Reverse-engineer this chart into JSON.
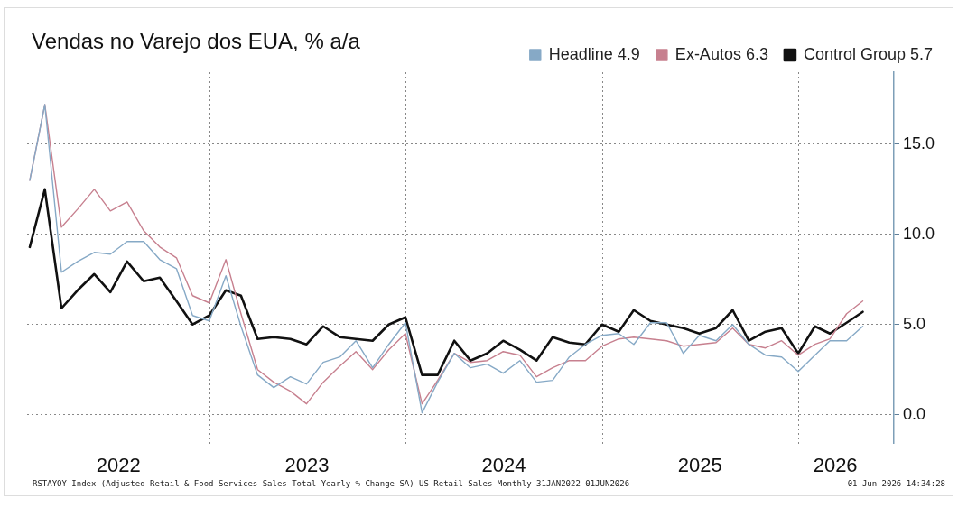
{
  "chart_data": {
    "type": "line",
    "title": "Vendas no Varejo dos EUA, % a/a",
    "x": [
      "2022-01-31",
      "2022-02-28",
      "2022-03-31",
      "2022-04-30",
      "2022-05-31",
      "2022-06-30",
      "2022-07-31",
      "2022-08-31",
      "2022-09-30",
      "2022-10-31",
      "2022-11-30",
      "2022-12-31",
      "2023-01-31",
      "2023-02-28",
      "2023-03-31",
      "2023-04-30",
      "2023-05-31",
      "2023-06-30",
      "2023-07-31",
      "2023-08-31",
      "2023-09-30",
      "2023-10-31",
      "2023-11-30",
      "2023-12-31",
      "2024-01-31",
      "2024-02-29",
      "2024-03-31",
      "2024-04-30",
      "2024-05-31",
      "2024-06-30",
      "2024-07-31",
      "2024-08-31",
      "2024-09-30",
      "2024-10-31",
      "2024-11-30",
      "2024-12-31",
      "2025-01-31",
      "2025-02-28",
      "2025-03-31",
      "2025-04-30",
      "2025-05-31",
      "2025-06-30",
      "2025-07-31",
      "2025-08-31",
      "2025-09-30",
      "2025-10-31",
      "2025-11-30",
      "2025-12-31",
      "2026-01-31",
      "2026-02-28",
      "2026-03-31",
      "2026-04-30"
    ],
    "series": [
      {
        "name": "Headline 4.9",
        "color": "#86a9c6",
        "values": [
          13.0,
          17.2,
          7.9,
          8.5,
          9.0,
          8.9,
          9.6,
          9.6,
          8.6,
          8.1,
          5.5,
          5.2,
          7.7,
          4.9,
          2.2,
          1.5,
          2.1,
          1.7,
          2.9,
          3.2,
          4.1,
          2.6,
          3.9,
          5.1,
          0.1,
          1.8,
          3.4,
          2.6,
          2.8,
          2.3,
          3.0,
          1.8,
          1.9,
          3.2,
          3.9,
          4.4,
          4.5,
          3.9,
          5.1,
          5.1,
          3.4,
          4.4,
          4.1,
          5.0,
          3.9,
          3.3,
          3.2,
          2.4,
          3.3,
          4.1,
          4.1,
          4.9
        ]
      },
      {
        "name": "Ex-Autos 6.3",
        "color": "#c7808f",
        "values": [
          13.0,
          17.2,
          10.4,
          11.4,
          12.5,
          11.3,
          11.8,
          10.2,
          9.3,
          8.7,
          6.6,
          6.2,
          8.6,
          5.6,
          2.5,
          1.8,
          1.3,
          0.6,
          1.8,
          2.7,
          3.5,
          2.5,
          3.6,
          4.5,
          0.6,
          1.9,
          3.4,
          2.9,
          3.0,
          3.5,
          3.3,
          2.1,
          2.6,
          3.0,
          3.0,
          3.8,
          4.2,
          4.3,
          4.2,
          4.1,
          3.8,
          3.9,
          4.0,
          4.8,
          3.9,
          3.7,
          4.1,
          3.3,
          3.9,
          4.2,
          5.6,
          6.3
        ]
      },
      {
        "name": "Control Group 5.7",
        "color": "#111111",
        "values": [
          9.3,
          12.5,
          5.9,
          6.9,
          7.8,
          6.8,
          8.5,
          7.4,
          7.6,
          6.3,
          5.0,
          5.5,
          6.9,
          6.6,
          4.2,
          4.3,
          4.2,
          3.9,
          4.9,
          4.3,
          4.2,
          4.1,
          5.0,
          5.4,
          2.2,
          2.2,
          4.1,
          3.0,
          3.4,
          4.1,
          3.6,
          3.0,
          4.3,
          4.0,
          3.9,
          5.0,
          4.6,
          5.8,
          5.2,
          5.0,
          4.8,
          4.5,
          4.8,
          5.8,
          4.1,
          4.6,
          4.8,
          3.4,
          4.9,
          4.5,
          5.1,
          5.7
        ]
      }
    ],
    "xlim": [
      "2022-01-26",
      "2026-06-27"
    ],
    "xticks": [
      {
        "value": "2022-07-15",
        "label": "2022"
      },
      {
        "value": "2023-01-01",
        "label": null
      },
      {
        "value": "2023-07-01",
        "label": "2023"
      },
      {
        "value": "2024-01-01",
        "label": null
      },
      {
        "value": "2024-07-01",
        "label": "2024"
      },
      {
        "value": "2025-01-01",
        "label": null
      },
      {
        "value": "2025-07-01",
        "label": "2025"
      },
      {
        "value": "2026-01-01",
        "label": null
      },
      {
        "value": "2026-03-10",
        "label": "2026"
      }
    ],
    "ylim": [
      -1.6,
      19
    ],
    "yticks": [
      {
        "value": 0,
        "label": "0.0"
      },
      {
        "value": 5,
        "label": "5.0"
      },
      {
        "value": 10,
        "label": "10.0"
      },
      {
        "value": 15,
        "label": "15.0"
      }
    ],
    "grid": true,
    "legend": "top",
    "marker": "none",
    "line_style": "solid",
    "annotations": [
      "RSTAYOY Index (Adjusted Retail & Food Services Sales Total Yearly % Change SA) US Retail Sales Monthly 31JAN2022-01JUN2026",
      "01-Jun-2026 14:34:28"
    ]
  }
}
